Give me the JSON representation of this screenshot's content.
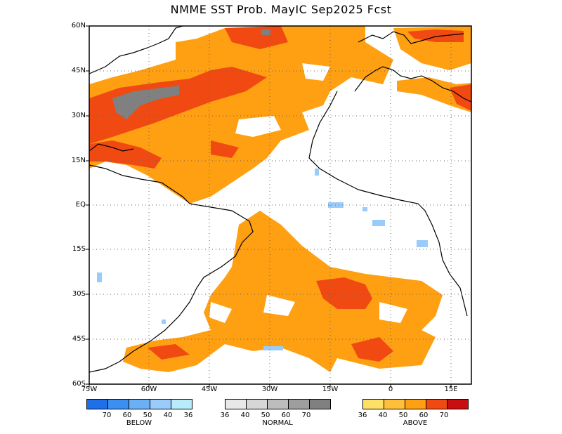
{
  "title": "NMME SST Prob. MayIC   Sep2025 Fcst",
  "map": {
    "lat_labels": [
      "60N",
      "45N",
      "30N",
      "15N",
      "EQ",
      "15S",
      "30S",
      "45S",
      "60S"
    ],
    "lon_labels": [
      "75W",
      "60W",
      "45W",
      "30W",
      "15W",
      "0",
      "15E"
    ]
  },
  "legend": {
    "below": {
      "label": "BELOW",
      "ticks": [
        "70",
        "60",
        "50",
        "40",
        "36"
      ],
      "colors": [
        "#1e6fe8",
        "#3a8ff0",
        "#6ab0f5",
        "#99ccfa",
        "#b8ecfa"
      ]
    },
    "normal": {
      "label": "NORMAL",
      "ticks": [
        "36",
        "40",
        "50",
        "60",
        "70"
      ],
      "colors": [
        "#e8e8e8",
        "#d6d6d6",
        "#bdbdbd",
        "#9e9e9e",
        "#808080"
      ]
    },
    "above": {
      "label": "ABOVE",
      "ticks": [
        "36",
        "40",
        "50",
        "60",
        "70"
      ],
      "colors": [
        "#ffe066",
        "#ffbf3a",
        "#ff9f12",
        "#f04a12",
        "#c80e0e"
      ]
    }
  }
}
